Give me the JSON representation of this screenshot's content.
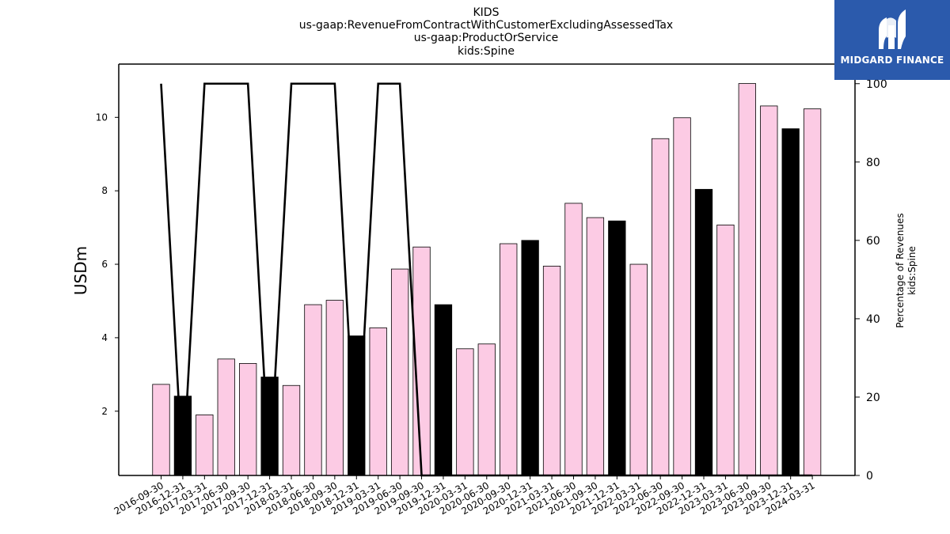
{
  "chart_data": {
    "type": "bar",
    "title_lines": [
      "KIDS",
      "us-gaap:RevenueFromContractWithCustomerExcludingAssessedTax",
      "us-gaap:ProductOrService",
      "kids:Spine"
    ],
    "ylabel": "USDm",
    "y2label_lines": [
      "Percentage of Revenues",
      "kids:Spine"
    ],
    "categories": [
      "2016-09-30",
      "2016-12-31",
      "2017-03-31",
      "2017-06-30",
      "2017-09-30",
      "2017-12-31",
      "2018-03-31",
      "2018-06-30",
      "2018-09-30",
      "2018-12-31",
      "2019-03-31",
      "2019-06-30",
      "2019-09-30",
      "2019-12-31",
      "2020-03-31",
      "2020-06-30",
      "2020-09-30",
      "2020-12-31",
      "2021-03-31",
      "2021-06-30",
      "2021-09-30",
      "2021-12-31",
      "2022-03-31",
      "2022-06-30",
      "2022-09-30",
      "2022-12-31",
      "2023-03-31",
      "2023-06-30",
      "2023-09-30",
      "2023-12-31",
      "2024-03-31"
    ],
    "series": [
      {
        "type": "bar",
        "axis": "left",
        "values": [
          2.73,
          2.41,
          1.9,
          3.42,
          3.3,
          2.93,
          2.7,
          4.9,
          5.02,
          4.05,
          4.27,
          5.87,
          6.47,
          4.9,
          3.7,
          3.83,
          6.56,
          6.65,
          5.95,
          7.66,
          7.27,
          7.18,
          6.0,
          9.42,
          9.99,
          8.04,
          7.07,
          10.92,
          10.31,
          9.69,
          10.23
        ],
        "highlight": [
          false,
          true,
          false,
          false,
          false,
          true,
          false,
          false,
          false,
          true,
          false,
          false,
          false,
          true,
          false,
          false,
          false,
          true,
          false,
          false,
          false,
          true,
          false,
          false,
          false,
          true,
          false,
          false,
          false,
          true,
          false
        ]
      },
      {
        "type": "line",
        "axis": "right",
        "values": [
          100,
          0,
          100,
          100,
          100,
          0,
          100,
          100,
          100,
          0,
          100,
          100,
          0,
          0,
          0,
          0,
          0,
          0,
          0,
          0,
          0,
          0,
          0,
          0,
          0,
          0,
          0,
          0,
          0,
          0,
          0
        ]
      }
    ],
    "ylim": [
      0.25,
      11.45
    ],
    "yticks": [
      2,
      4,
      6,
      8,
      10
    ],
    "y2lim": [
      0,
      105
    ],
    "y2ticks": [
      0,
      20,
      40,
      60,
      80,
      100
    ],
    "colors": {
      "bar": "#fccbe4",
      "highlight_bar": "#000000",
      "bar_edge": "#000000",
      "line": "#000000"
    }
  },
  "logo": {
    "text": "MIDGARD FINANCE",
    "background": "#2b5aac"
  }
}
